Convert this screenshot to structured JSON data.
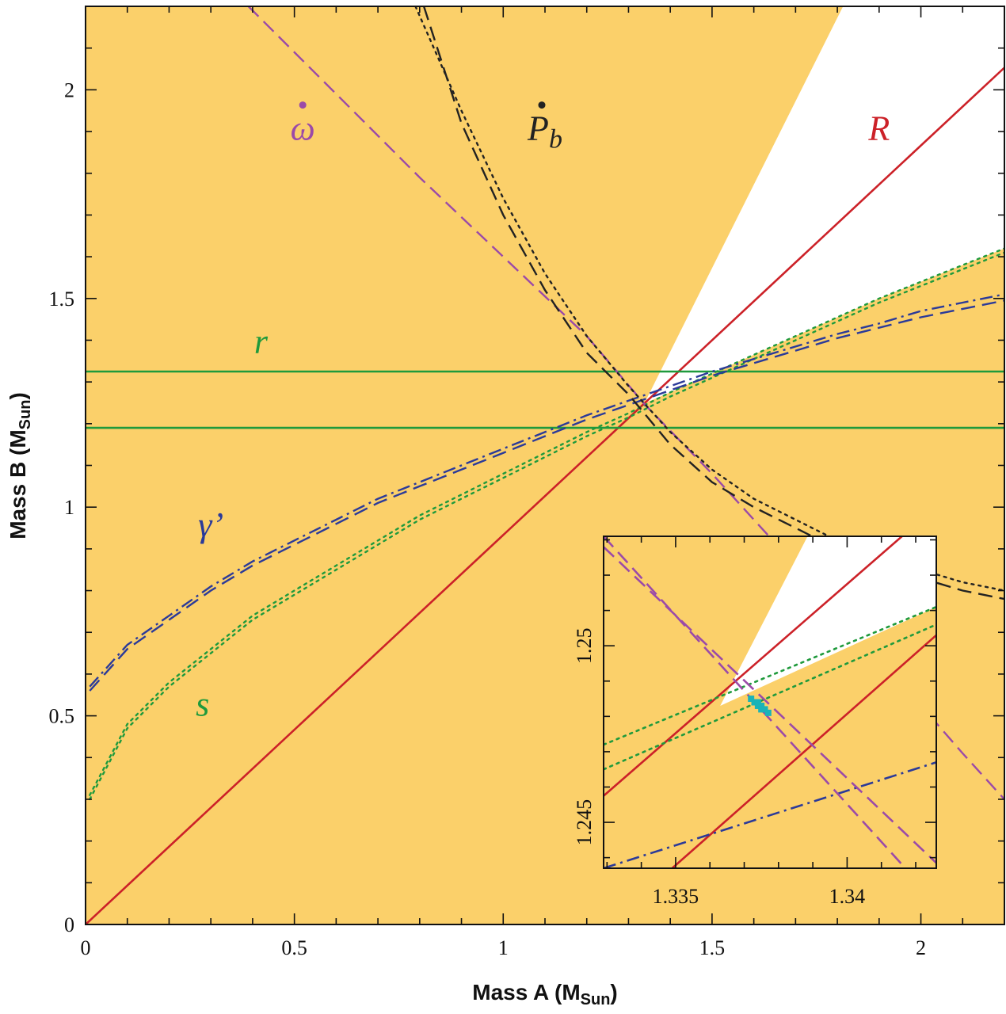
{
  "chart_data": {
    "type": "line",
    "title": "",
    "xlabel": {
      "main": "Mass A (M",
      "sub": "Sun",
      "close": ")"
    },
    "ylabel": {
      "main": "Mass B (M",
      "sub": "Sun",
      "close": ")"
    },
    "xlim": [
      0,
      2.2
    ],
    "ylim": [
      0,
      2.2
    ],
    "xticks": [
      {
        "value": 0,
        "label": "0"
      },
      {
        "value": 0.5,
        "label": "0.5"
      },
      {
        "value": 1,
        "label": "1"
      },
      {
        "value": 1.5,
        "label": "1.5"
      },
      {
        "value": 2,
        "label": "2"
      }
    ],
    "yticks": [
      {
        "value": 0,
        "label": "0"
      },
      {
        "value": 0.5,
        "label": "0.5"
      },
      {
        "value": 1,
        "label": "1"
      },
      {
        "value": 1.5,
        "label": "1.5"
      },
      {
        "value": 2,
        "label": "2"
      }
    ],
    "minor_tick_step": 0.1,
    "colors": {
      "excluded_region": "#fbd06a",
      "allowed_region": "#ffffff",
      "R": "#cc2128",
      "r": "#1f9a3c",
      "s": "#1f9a3c",
      "gamma": "#2b3a99",
      "omega": "#9b4aa8",
      "Pb": "#222222",
      "solution": "#19b3b8"
    },
    "allowed_wedge": {
      "vertex": [
        1.3381,
        1.2489
      ],
      "upper_boundary_slope": 2.0,
      "lower_boundary": "s-upper curve"
    },
    "series": [
      {
        "name": "R",
        "label": "R",
        "style": "solid",
        "points": [
          [
            0,
            0
          ],
          [
            2.2,
            2.053
          ]
        ]
      },
      {
        "name": "r-upper",
        "label": "r",
        "style": "solid",
        "points": [
          [
            0,
            1.325
          ],
          [
            2.2,
            1.325
          ]
        ]
      },
      {
        "name": "r-lower",
        "label": "",
        "style": "solid",
        "points": [
          [
            0,
            1.19
          ],
          [
            2.2,
            1.19
          ]
        ]
      },
      {
        "name": "s-upper",
        "label": "s",
        "style": "dotted",
        "points": [
          [
            0.01,
            0.31
          ],
          [
            0.1,
            0.48
          ],
          [
            0.2,
            0.58
          ],
          [
            0.3,
            0.66
          ],
          [
            0.4,
            0.74
          ],
          [
            0.5,
            0.8
          ],
          [
            0.6,
            0.86
          ],
          [
            0.7,
            0.92
          ],
          [
            0.8,
            0.98
          ],
          [
            0.9,
            1.03
          ],
          [
            1.0,
            1.08
          ],
          [
            1.1,
            1.13
          ],
          [
            1.2,
            1.18
          ],
          [
            1.3,
            1.225
          ],
          [
            1.4,
            1.275
          ],
          [
            1.5,
            1.32
          ],
          [
            1.6,
            1.365
          ],
          [
            1.7,
            1.41
          ],
          [
            1.8,
            1.455
          ],
          [
            1.9,
            1.5
          ],
          [
            2.0,
            1.54
          ],
          [
            2.1,
            1.58
          ],
          [
            2.2,
            1.62
          ]
        ]
      },
      {
        "name": "s-lower",
        "label": "",
        "style": "dotted",
        "points": [
          [
            0.01,
            0.3
          ],
          [
            0.1,
            0.47
          ],
          [
            0.2,
            0.57
          ],
          [
            0.3,
            0.65
          ],
          [
            0.4,
            0.73
          ],
          [
            0.5,
            0.79
          ],
          [
            0.6,
            0.85
          ],
          [
            0.7,
            0.91
          ],
          [
            0.8,
            0.97
          ],
          [
            0.9,
            1.02
          ],
          [
            1.0,
            1.07
          ],
          [
            1.1,
            1.12
          ],
          [
            1.2,
            1.17
          ],
          [
            1.3,
            1.215
          ],
          [
            1.4,
            1.265
          ],
          [
            1.5,
            1.31
          ],
          [
            1.6,
            1.355
          ],
          [
            1.7,
            1.4
          ],
          [
            1.8,
            1.445
          ],
          [
            1.9,
            1.49
          ],
          [
            2.0,
            1.53
          ],
          [
            2.1,
            1.57
          ],
          [
            2.2,
            1.61
          ]
        ]
      },
      {
        "name": "gamma-dashdot",
        "label": "γ’",
        "style": "dashdot",
        "points": [
          [
            0.01,
            0.57
          ],
          [
            0.1,
            0.67
          ],
          [
            0.2,
            0.74
          ],
          [
            0.3,
            0.81
          ],
          [
            0.4,
            0.87
          ],
          [
            0.5,
            0.92
          ],
          [
            0.6,
            0.97
          ],
          [
            0.7,
            1.02
          ],
          [
            0.8,
            1.06
          ],
          [
            0.9,
            1.1
          ],
          [
            1.0,
            1.14
          ],
          [
            1.1,
            1.18
          ],
          [
            1.2,
            1.22
          ],
          [
            1.3,
            1.255
          ],
          [
            1.4,
            1.29
          ],
          [
            1.5,
            1.325
          ],
          [
            1.6,
            1.355
          ],
          [
            1.7,
            1.385
          ],
          [
            1.8,
            1.415
          ],
          [
            1.9,
            1.44
          ],
          [
            2.0,
            1.47
          ],
          [
            2.1,
            1.49
          ],
          [
            2.2,
            1.51
          ]
        ]
      },
      {
        "name": "gamma-dash",
        "label": "",
        "style": "dashed",
        "points": [
          [
            0.01,
            0.56
          ],
          [
            0.1,
            0.66
          ],
          [
            0.2,
            0.73
          ],
          [
            0.3,
            0.8
          ],
          [
            0.4,
            0.86
          ],
          [
            0.5,
            0.91
          ],
          [
            0.6,
            0.96
          ],
          [
            0.7,
            1.01
          ],
          [
            0.8,
            1.05
          ],
          [
            0.9,
            1.09
          ],
          [
            1.0,
            1.13
          ],
          [
            1.1,
            1.17
          ],
          [
            1.2,
            1.21
          ],
          [
            1.3,
            1.245
          ],
          [
            1.4,
            1.28
          ],
          [
            1.5,
            1.315
          ],
          [
            1.6,
            1.345
          ],
          [
            1.7,
            1.375
          ],
          [
            1.8,
            1.405
          ],
          [
            1.9,
            1.43
          ],
          [
            2.0,
            1.455
          ],
          [
            2.1,
            1.475
          ],
          [
            2.2,
            1.495
          ]
        ]
      },
      {
        "name": "omega-dot",
        "label": "ω̇",
        "style": "dashed",
        "points": [
          [
            0.39,
            2.2
          ],
          [
            0.6,
            1.99
          ],
          [
            0.8,
            1.79
          ],
          [
            1.0,
            1.6
          ],
          [
            1.2,
            1.41
          ],
          [
            1.34,
            1.245
          ],
          [
            1.5,
            1.08
          ],
          [
            1.7,
            0.86
          ],
          [
            1.9,
            0.64
          ],
          [
            2.1,
            0.41
          ],
          [
            2.2,
            0.3
          ]
        ]
      },
      {
        "name": "Pb-dot-dashed",
        "label": "Ṗb",
        "style": "dashed",
        "points": [
          [
            0.81,
            2.2
          ],
          [
            0.9,
            1.92
          ],
          [
            1.0,
            1.7
          ],
          [
            1.1,
            1.52
          ],
          [
            1.2,
            1.37
          ],
          [
            1.3,
            1.27
          ],
          [
            1.4,
            1.15
          ],
          [
            1.5,
            1.06
          ],
          [
            1.6,
            1.0
          ],
          [
            1.7,
            0.95
          ],
          [
            1.8,
            0.9
          ],
          [
            1.9,
            0.86
          ],
          [
            2.0,
            0.83
          ],
          [
            2.1,
            0.8
          ],
          [
            2.2,
            0.78
          ]
        ]
      },
      {
        "name": "Pb-dot-dotted",
        "label": "",
        "style": "dotted",
        "points": [
          [
            0.79,
            2.2
          ],
          [
            0.9,
            1.95
          ],
          [
            1.0,
            1.74
          ],
          [
            1.1,
            1.56
          ],
          [
            1.2,
            1.41
          ],
          [
            1.3,
            1.29
          ],
          [
            1.4,
            1.18
          ],
          [
            1.5,
            1.09
          ],
          [
            1.6,
            1.02
          ],
          [
            1.7,
            0.97
          ],
          [
            1.8,
            0.92
          ],
          [
            1.9,
            0.88
          ],
          [
            2.0,
            0.85
          ],
          [
            2.1,
            0.82
          ],
          [
            2.2,
            0.8
          ]
        ]
      }
    ],
    "curve_labels": [
      {
        "series": "omega-dot",
        "text": "ω",
        "dot": true,
        "color": "#9b4aa8",
        "at": [
          0.52,
          1.88
        ]
      },
      {
        "series": "Pb-dot-dashed",
        "text": "P",
        "subscript": "b",
        "dot": true,
        "color": "#222222",
        "at": [
          1.1,
          1.88
        ]
      },
      {
        "series": "R",
        "text": "R",
        "color": "#cc2128",
        "at": [
          1.9,
          1.88
        ]
      },
      {
        "series": "r-upper",
        "text": "r",
        "color": "#1f9a3c",
        "at": [
          0.42,
          1.37
        ]
      },
      {
        "series": "gamma-dashdot",
        "text": "γ’",
        "color": "#2b3a99",
        "at": [
          0.3,
          0.93
        ]
      },
      {
        "series": "s-upper",
        "text": "s",
        "color": "#1f9a3c",
        "at": [
          0.28,
          0.5
        ]
      }
    ],
    "inset": {
      "xlim": [
        1.3329,
        1.3426
      ],
      "ylim": [
        1.2437,
        1.2531
      ],
      "xticks": [
        {
          "value": 1.335,
          "label": "1.335"
        },
        {
          "value": 1.34,
          "label": "1.34"
        }
      ],
      "yticks": [
        {
          "value": 1.245,
          "label": "1.245"
        },
        {
          "value": 1.25,
          "label": "1.25"
        }
      ],
      "allowed_wedge": [
        [
          1.3363,
          1.2483
        ],
        [
          1.3389,
          1.2532
        ],
        [
          1.3426,
          1.2532
        ],
        [
          1.3426,
          1.2511
        ]
      ],
      "series": [
        {
          "name": "R-upper",
          "style": "solid",
          "color": "#cc2128",
          "points": [
            [
              1.3329,
              1.24575
            ],
            [
              1.3416,
              1.2531
            ]
          ]
        },
        {
          "name": "R-lower",
          "style": "solid",
          "color": "#cc2128",
          "points": [
            [
              1.3349,
              1.2437
            ],
            [
              1.3426,
              1.2503
            ]
          ]
        },
        {
          "name": "s-upper",
          "style": "dotted",
          "color": "#1f9a3c",
          "points": [
            [
              1.3329,
              1.2472
            ],
            [
              1.3426,
              1.2511
            ]
          ]
        },
        {
          "name": "s-lower",
          "style": "dotted",
          "color": "#1f9a3c",
          "points": [
            [
              1.3329,
              1.2465
            ],
            [
              1.3426,
              1.2506
            ]
          ]
        },
        {
          "name": "gamma",
          "style": "dashdot",
          "color": "#2b3a99",
          "points": [
            [
              1.3329,
              1.2437
            ],
            [
              1.3426,
              1.2467
            ]
          ]
        },
        {
          "name": "omega-1",
          "style": "dashed",
          "color": "#9b4aa8",
          "points": [
            [
              1.3329,
              1.2531
            ],
            [
              1.3417,
              1.2437
            ]
          ]
        },
        {
          "name": "omega-2",
          "style": "dashed",
          "color": "#9b4aa8",
          "points": [
            [
              1.3329,
              1.2528
            ],
            [
              1.3426,
              1.24385
            ]
          ]
        }
      ],
      "solution_points": [
        [
          1.3372,
          1.2485
        ],
        [
          1.3373,
          1.2484
        ],
        [
          1.3374,
          1.2483
        ],
        [
          1.3375,
          1.2483
        ],
        [
          1.3375,
          1.2482
        ],
        [
          1.3376,
          1.2482
        ],
        [
          1.3377,
          1.2481
        ],
        [
          1.3374,
          1.2484
        ]
      ]
    }
  }
}
